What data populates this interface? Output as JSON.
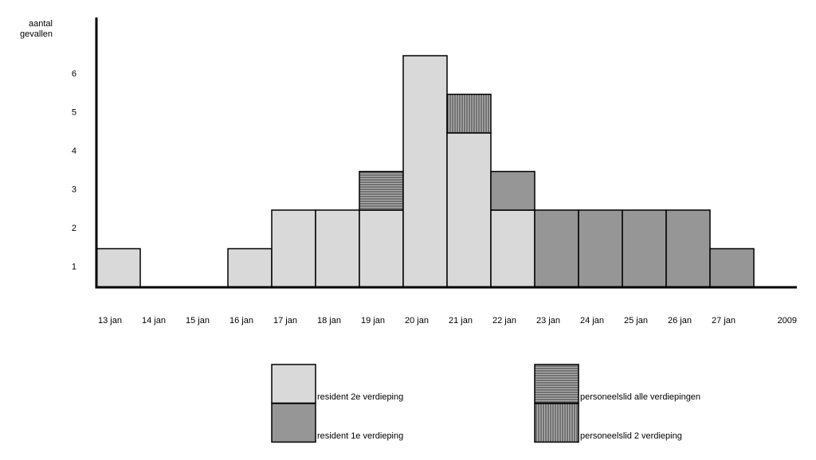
{
  "chart_data": {
    "type": "bar",
    "stacked": true,
    "ylabel": "aantal gevallen",
    "xlabel": "2009",
    "categories": [
      "13 jan",
      "14 jan",
      "15 jan",
      "16 jan",
      "17 jan",
      "18 jan",
      "19 jan",
      "20 jan",
      "21 jan",
      "22 jan",
      "23 jan",
      "24 jan",
      "25 jan",
      "26 jan",
      "27 jan"
    ],
    "series": [
      {
        "name": "resident 2e verdieping",
        "color": "#d9d9d9",
        "hatch": "none",
        "values": [
          1,
          0,
          0,
          1,
          2,
          2,
          2,
          6,
          4,
          2,
          0,
          0,
          0,
          0,
          0
        ]
      },
      {
        "name": "resident 1e verdieping",
        "color": "#969696",
        "hatch": "none",
        "values": [
          0,
          0,
          0,
          0,
          0,
          0,
          0,
          0,
          0,
          1,
          2,
          2,
          2,
          2,
          1
        ]
      },
      {
        "name": "personeelslid alle verdiepingen",
        "color": "#8c8c8c",
        "hatch": "horizontal",
        "values": [
          0,
          0,
          0,
          0,
          0,
          0,
          1,
          0,
          0,
          0,
          0,
          0,
          0,
          0,
          0
        ]
      },
      {
        "name": "personeelslid 2 verdieping",
        "color": "#8c8c8c",
        "hatch": "vertical",
        "values": [
          0,
          0,
          0,
          0,
          0,
          0,
          0,
          0,
          1,
          0,
          0,
          0,
          0,
          0,
          0
        ]
      }
    ],
    "ylim": [
      0,
      7
    ],
    "yticks": [
      1,
      2,
      3,
      4,
      5,
      6
    ],
    "grid": false
  }
}
